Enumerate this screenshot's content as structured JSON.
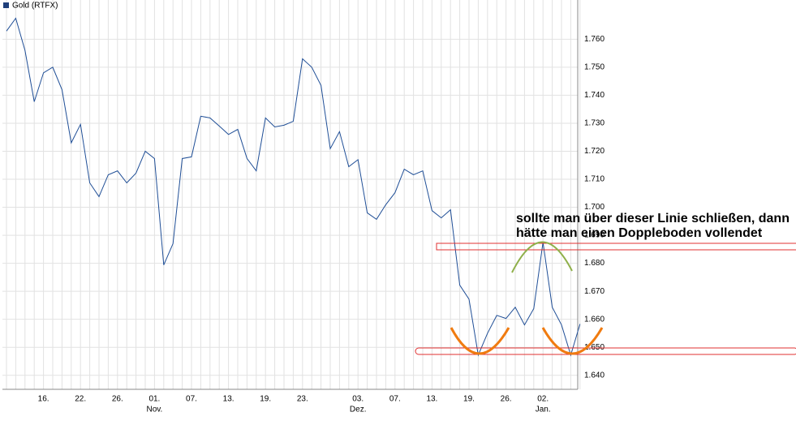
{
  "chart_data": {
    "type": "line",
    "legend": "Gold (RTFX)",
    "color": "#1f4e96",
    "categories": [
      null,
      null,
      null,
      null,
      "16.",
      null,
      null,
      null,
      "22.",
      null,
      null,
      null,
      "26.",
      null,
      null,
      null,
      "01.",
      null,
      null,
      null,
      "07.",
      null,
      null,
      null,
      "13.",
      null,
      null,
      null,
      "19.",
      null,
      null,
      null,
      "23.",
      null,
      null,
      null,
      null,
      null,
      "03.",
      null,
      null,
      null,
      "07.",
      null,
      null,
      null,
      "13.",
      null,
      null,
      null,
      "19.",
      null,
      null,
      null,
      "26.",
      null,
      null,
      null,
      "02.",
      null,
      null,
      null,
      null
    ],
    "month_labels": [
      null,
      null,
      null,
      null,
      null,
      null,
      null,
      null,
      null,
      null,
      null,
      null,
      null,
      null,
      null,
      null,
      "Nov.",
      null,
      null,
      null,
      null,
      null,
      null,
      null,
      null,
      null,
      null,
      null,
      null,
      null,
      null,
      null,
      null,
      null,
      null,
      null,
      null,
      null,
      "Dez.",
      null,
      null,
      null,
      null,
      null,
      null,
      null,
      null,
      null,
      null,
      null,
      null,
      null,
      null,
      null,
      null,
      null,
      null,
      null,
      "Jan.",
      null,
      null,
      null,
      null
    ],
    "values": [
      1762.9,
      1767.5,
      1756.0,
      1737.7,
      1748.0,
      1750.0,
      1742.0,
      1723.0,
      1729.6,
      1708.7,
      1703.8,
      1711.6,
      1713.0,
      1708.7,
      1712.2,
      1720.0,
      1717.4,
      1679.4,
      1687.0,
      1717.4,
      1718.0,
      1732.5,
      1731.9,
      1729.0,
      1726.0,
      1727.8,
      1717.4,
      1713.0,
      1731.9,
      1728.7,
      1729.3,
      1730.7,
      1753.0,
      1750.0,
      1743.5,
      1720.9,
      1727.0,
      1714.5,
      1717.0,
      1698.0,
      1695.7,
      1700.9,
      1705.2,
      1713.6,
      1711.6,
      1713.0,
      1698.8,
      1696.2,
      1699.1,
      1672.2,
      1667.2,
      1647.2,
      1655.0,
      1661.4,
      1660.3,
      1664.3,
      1658.0,
      1663.8,
      1687.5,
      1664.3,
      1658.0,
      1647.2,
      1658.3
    ],
    "ylim": [
      1635,
      1774
    ],
    "yticks": [
      {
        "value": 1640,
        "label": "1.640"
      },
      {
        "value": 1650,
        "label": "1.650"
      },
      {
        "value": 1660,
        "label": "1.660"
      },
      {
        "value": 1670,
        "label": "1.670"
      },
      {
        "value": 1680,
        "label": "1.680"
      },
      {
        "value": 1690,
        "label": "1.690"
      },
      {
        "value": 1700,
        "label": "1.700"
      },
      {
        "value": 1710,
        "label": "1.710"
      },
      {
        "value": 1720,
        "label": "1.720"
      },
      {
        "value": 1730,
        "label": "1.730"
      },
      {
        "value": 1740,
        "label": "1.740"
      },
      {
        "value": 1750,
        "label": "1.750"
      },
      {
        "value": 1760,
        "label": "1.760"
      }
    ],
    "grid": true,
    "annotation": [
      "sollte man über dieser Linie schließen, dann",
      "hätte man einen Doppleboden vollendet"
    ]
  }
}
